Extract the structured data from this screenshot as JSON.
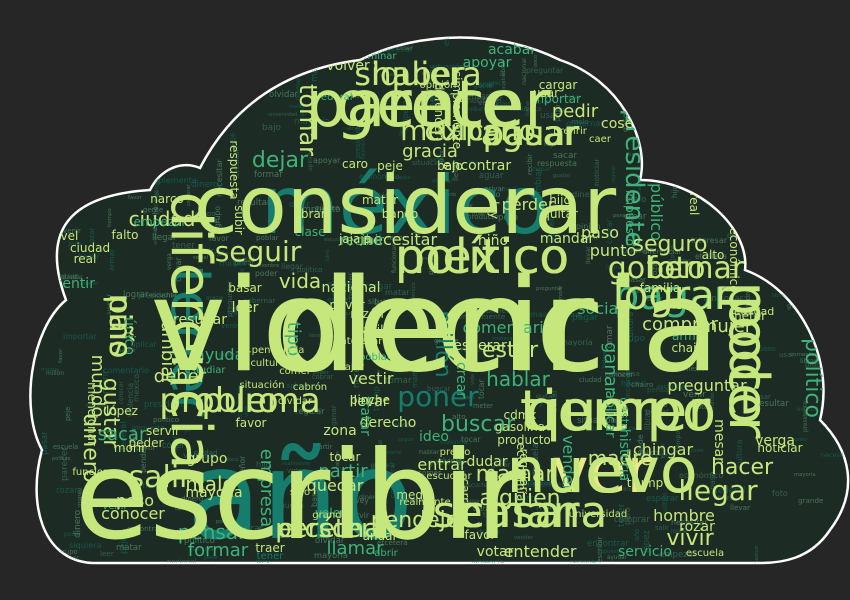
{
  "cloud": {
    "background": "#262626",
    "shape_fill": "#1c2b24",
    "shape_outline": "#ffffff",
    "palette": {
      "lime": "#c6e77b",
      "yellow": "#e9e988",
      "teal": "#167d6d",
      "green": "#3fb27a",
      "pale": "#c9e6a6",
      "mid": "#6fae86",
      "dim": "#4b8a73"
    },
    "words": [
      {
        "text": "decir",
        "c": "lime"
      },
      {
        "text": "año",
        "c": "teal"
      },
      {
        "text": "méxico",
        "c": "teal"
      },
      {
        "text": "gente",
        "c": "lime"
      },
      {
        "text": "tener",
        "c": "teal"
      },
      {
        "text": "querer",
        "c": "lime"
      },
      {
        "text": "poder",
        "c": "lime"
      },
      {
        "text": "ver",
        "c": "yellow"
      },
      {
        "text": "mexico",
        "c": "lime"
      },
      {
        "text": "casar",
        "c": "lime"
      },
      {
        "text": "pagar",
        "c": "green"
      },
      {
        "text": "gobernar",
        "c": "lime"
      },
      {
        "text": "pasar",
        "c": "lime"
      },
      {
        "text": "mexicano",
        "c": "lime"
      },
      {
        "text": "haber",
        "c": "lime"
      },
      {
        "text": "problema",
        "c": "lime"
      },
      {
        "text": "personar",
        "c": "lime"
      },
      {
        "text": "país",
        "c": "lime"
      },
      {
        "text": "llegar",
        "c": "lime"
      },
      {
        "text": "hacer",
        "c": "lime"
      },
      {
        "text": "salir",
        "c": "lime"
      },
      {
        "text": "seguir",
        "c": "lime"
      },
      {
        "text": "presidente",
        "c": "green"
      },
      {
        "text": "poner",
        "c": "teal"
      },
      {
        "text": "buscar",
        "c": "green"
      },
      {
        "text": "comprar",
        "c": "lime"
      },
      {
        "text": "político",
        "c": "green"
      },
      {
        "text": "vivir",
        "c": "lime"
      },
      {
        "text": "tomar",
        "c": "lime"
      },
      {
        "text": "dejar",
        "c": "green"
      },
      {
        "text": "gracia",
        "c": "lime"
      },
      {
        "text": "mamar",
        "c": "lime"
      },
      {
        "text": "alguien",
        "c": "lime"
      },
      {
        "text": "pendejo",
        "c": "lime"
      },
      {
        "text": "madre",
        "c": "lime"
      },
      {
        "text": "mujer",
        "c": "lime"
      },
      {
        "text": "seguro",
        "c": "lime"
      },
      {
        "text": "dinero",
        "c": "lime"
      },
      {
        "text": "mundo",
        "c": "lime"
      },
      {
        "text": "gustar",
        "c": "lime"
      },
      {
        "text": "ganar",
        "c": "green"
      },
      {
        "text": "estar",
        "c": "lime"
      },
      {
        "text": "hablar",
        "c": "green"
      },
      {
        "text": "pensar",
        "c": "green"
      },
      {
        "text": "ciudad",
        "c": "lime"
      },
      {
        "text": "cambiar",
        "c": "lime"
      },
      {
        "text": "vida",
        "c": "lime"
      },
      {
        "text": "tipo",
        "c": "green"
      },
      {
        "text": "millón",
        "c": "teal"
      },
      {
        "text": "malo",
        "c": "lime"
      },
      {
        "text": "empresa",
        "c": "green"
      },
      {
        "text": "deber",
        "c": "lime"
      },
      {
        "text": "sacar",
        "c": "green"
      },
      {
        "text": "partir",
        "c": "green"
      },
      {
        "text": "llamar",
        "c": "green"
      },
      {
        "text": "formar",
        "c": "green"
      },
      {
        "text": "pedir",
        "c": "lime"
      },
      {
        "text": "volver",
        "c": "lime"
      },
      {
        "text": "apoyar",
        "c": "green"
      },
      {
        "text": "encontrar",
        "c": "lime"
      },
      {
        "text": "paso",
        "c": "lime"
      },
      {
        "text": "punto",
        "c": "lime"
      },
      {
        "text": "perder",
        "c": "lime"
      },
      {
        "text": "comentario",
        "c": "green"
      },
      {
        "text": "esperar",
        "c": "lime"
      },
      {
        "text": "preguntar",
        "c": "lime"
      },
      {
        "text": "chingar",
        "c": "lime"
      },
      {
        "text": "hombre",
        "c": "lime"
      },
      {
        "text": "entender",
        "c": "lime"
      },
      {
        "text": "quedar",
        "c": "lime"
      },
      {
        "text": "entrar",
        "c": "lime"
      },
      {
        "text": "conocer",
        "c": "lime"
      },
      {
        "text": "peso",
        "c": "lime"
      },
      {
        "text": "grupo",
        "c": "lime"
      },
      {
        "text": "mayoría",
        "c": "lime"
      },
      {
        "text": "necesitar",
        "c": "lime"
      },
      {
        "text": "nacional",
        "c": "lime"
      },
      {
        "text": "vestir",
        "c": "lime"
      },
      {
        "text": "llevar",
        "c": "lime"
      },
      {
        "text": "derecho",
        "c": "lime"
      },
      {
        "text": "ayudar",
        "c": "green"
      },
      {
        "text": "resultar",
        "c": "lime"
      },
      {
        "text": "público",
        "c": "green"
      },
      {
        "text": "social",
        "c": "green"
      },
      {
        "text": "historia",
        "c": "green"
      },
      {
        "text": "verga",
        "c": "lime"
      },
      {
        "text": "servicio",
        "c": "green"
      },
      {
        "text": "votar",
        "c": "lime"
      },
      {
        "text": "aplicar",
        "c": "green"
      },
      {
        "text": "recibir",
        "c": "green"
      },
      {
        "text": "mandar",
        "c": "lime"
      },
      {
        "text": "niño",
        "c": "lime"
      },
      {
        "text": "leer",
        "c": "lime"
      },
      {
        "text": "único",
        "c": "green"
      },
      {
        "text": "sentir",
        "c": "green"
      },
      {
        "text": "crear",
        "c": "green"
      },
      {
        "text": "vender",
        "c": "green"
      },
      {
        "text": "rozar",
        "c": "lime"
      },
      {
        "text": "mesar",
        "c": "lime"
      },
      {
        "text": "ideo",
        "c": "green"
      },
      {
        "text": "coser",
        "c": "lime"
      },
      {
        "text": "acabar",
        "c": "green"
      },
      {
        "text": "señor",
        "c": "lime"
      },
      {
        "text": "cargar",
        "c": "lime"
      },
      {
        "text": "importar",
        "c": "green"
      },
      {
        "text": "usar",
        "c": "lime"
      },
      {
        "text": "razón",
        "c": "lime"
      },
      {
        "text": "basar",
        "c": "lime"
      },
      {
        "text": "zona",
        "c": "lime"
      },
      {
        "text": "tocar",
        "c": "lime"
      },
      {
        "text": "voler",
        "c": "green"
      },
      {
        "text": "traer",
        "c": "lime"
      },
      {
        "text": "andar",
        "c": "lime"
      },
      {
        "text": "tratar",
        "c": "green"
      },
      {
        "text": "dudar",
        "c": "lime"
      },
      {
        "text": "empezar",
        "c": "green"
      },
      {
        "text": "familia",
        "c": "lime"
      },
      {
        "text": "ciudad",
        "c": "lime"
      },
      {
        "text": "real",
        "c": "lime"
      },
      {
        "text": "nivel",
        "c": "lime"
      },
      {
        "text": "falto",
        "c": "lime"
      },
      {
        "text": "narco",
        "c": "lime"
      },
      {
        "text": "lópez",
        "c": "lime"
      },
      {
        "text": "morir",
        "c": "lime"
      },
      {
        "text": "peder",
        "c": "lime"
      },
      {
        "text": "servir",
        "c": "lime"
      },
      {
        "text": "favor",
        "c": "lime"
      },
      {
        "text": "meter",
        "c": "lime"
      },
      {
        "text": "alto",
        "c": "lime"
      },
      {
        "text": "armar",
        "c": "green"
      },
      {
        "text": "chairo",
        "c": "lime"
      },
      {
        "text": "realidad",
        "c": "lime"
      },
      {
        "text": "medio",
        "c": "lime"
      },
      {
        "text": "cdmx",
        "c": "lime"
      },
      {
        "text": "gasolina",
        "c": "lime"
      },
      {
        "text": "pinche",
        "c": "lime"
      },
      {
        "text": "fácil",
        "c": "lime"
      },
      {
        "text": "privar",
        "c": "lime"
      },
      {
        "text": "jajaja",
        "c": "lime"
      },
      {
        "text": "caro",
        "c": "lime"
      },
      {
        "text": "peje",
        "c": "lime"
      },
      {
        "text": "bajo",
        "c": "lime"
      },
      {
        "text": "ley",
        "c": "lime"
      },
      {
        "text": "hijo",
        "c": "lime"
      },
      {
        "text": "quitar",
        "c": "lime"
      },
      {
        "text": "impuesto",
        "c": "green"
      },
      {
        "text": "banco",
        "c": "lime"
      },
      {
        "text": "matar",
        "c": "lime"
      },
      {
        "text": "clase",
        "c": "green"
      },
      {
        "text": "librar",
        "c": "lime"
      },
      {
        "text": "respuesta",
        "c": "lime"
      },
      {
        "text": "subir",
        "c": "lime"
      },
      {
        "text": "wey",
        "c": "lime"
      },
      {
        "text": "terminar",
        "c": "green"
      },
      {
        "text": "federal",
        "c": "green"
      },
      {
        "text": "defender",
        "c": "lime"
      },
      {
        "text": "simplemente",
        "c": "lime"
      },
      {
        "text": "prefirir",
        "c": "lime"
      },
      {
        "text": "caer",
        "c": "lime"
      },
      {
        "text": "cobrar",
        "c": "green"
      },
      {
        "text": "real",
        "c": "lime"
      },
      {
        "text": "económico",
        "c": "lime"
      },
      {
        "text": "regular",
        "c": "lime"
      },
      {
        "text": "producto",
        "c": "lime"
      },
      {
        "text": "gasto",
        "c": "green"
      },
      {
        "text": "trump",
        "c": "lime"
      },
      {
        "text": "noticiar",
        "c": "lime"
      },
      {
        "text": "escuela",
        "c": "lime"
      },
      {
        "text": "universidad",
        "c": "lime"
      },
      {
        "text": "grande",
        "c": "lime"
      },
      {
        "text": "tener",
        "c": "teal"
      },
      {
        "text": "solo",
        "c": "lime"
      },
      {
        "text": "favor",
        "c": "lime"
      },
      {
        "text": "abrir",
        "c": "green"
      },
      {
        "text": "estudiar",
        "c": "green"
      },
      {
        "text": "mencionar",
        "c": "lime"
      },
      {
        "text": "funcionar",
        "c": "lime"
      },
      {
        "text": "venir",
        "c": "green"
      },
      {
        "text": "pendejada",
        "c": "lime"
      },
      {
        "text": "cultura",
        "c": "lime"
      },
      {
        "text": "olvidar",
        "c": "lime"
      },
      {
        "text": "cabrón",
        "c": "lime"
      },
      {
        "text": "comer",
        "c": "lime"
      },
      {
        "text": "poblar",
        "c": "green"
      },
      {
        "text": "interesar",
        "c": "lime"
      },
      {
        "text": "viajar",
        "c": "lime"
      },
      {
        "text": "situación",
        "c": "lime"
      },
      {
        "text": "opinión",
        "c": "lime"
      },
      {
        "text": "precio",
        "c": "lime"
      },
      {
        "text": "carrera",
        "c": "lime"
      },
      {
        "text": "realmente",
        "c": "lime"
      },
      {
        "text": "escuchar",
        "c": "lime"
      },
      {
        "text": "economía",
        "c": "lime"
      },
      {
        "text": "violencia",
        "c": "lime"
      },
      {
        "text": "escribir",
        "c": "lime"
      },
      {
        "text": "considerar",
        "c": "lime"
      },
      {
        "text": "parecer",
        "c": "lime"
      },
      {
        "text": "diferenciar",
        "c": "lime"
      },
      {
        "text": "tiempo",
        "c": "lime"
      },
      {
        "text": "poco",
        "c": "lime"
      },
      {
        "text": "nuevo",
        "c": "lime"
      },
      {
        "text": "político",
        "c": "lime"
      },
      {
        "text": "semana",
        "c": "lime"
      },
      {
        "text": "lograr",
        "c": "lime"
      },
      {
        "text": "foto",
        "c": "lime"
      },
      {
        "text": "aguar",
        "c": "lime"
      },
      {
        "text": "culpar",
        "c": "lime"
      },
      {
        "text": "siquiera",
        "c": "lime"
      },
      {
        "text": "puro",
        "c": "lime"
      },
      {
        "text": "etcétera",
        "c": "lime"
      },
      {
        "text": "niño",
        "c": "lime"
      }
    ]
  }
}
